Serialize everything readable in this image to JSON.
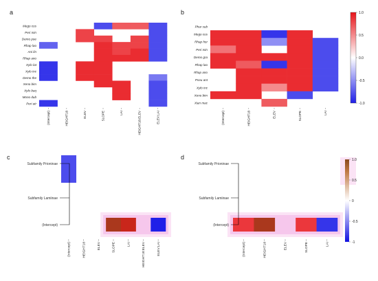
{
  "chart_data": [
    {
      "panel": "a",
      "type": "heatmap",
      "columns": [
        "(Intercept)",
        "HEIGHT18",
        "ELEV",
        "SLOPE",
        "LAI",
        "HEIGHT18:ELEV",
        "ELEV:LAI"
      ],
      "rows": [
        "Mego cos",
        "Peri min",
        "Demo poe",
        "Rhap lao",
        "Ani lin",
        "Rhap ano",
        "Xylo lat",
        "Xylo inc",
        "Demo the",
        "Xeno bim",
        "Xylo buq",
        "Mono dub",
        "Peri atr"
      ],
      "values": [
        [
          0,
          0,
          0,
          -0.8,
          0.7,
          0.7,
          -0.8
        ],
        [
          0,
          0,
          0.8,
          0,
          0,
          0,
          -0.8
        ],
        [
          0,
          0,
          0.8,
          0.8,
          0,
          0.8,
          -0.8
        ],
        [
          -0.7,
          0,
          0,
          0.9,
          0.8,
          0.8,
          -0.8
        ],
        [
          0,
          0,
          0,
          0.9,
          0.8,
          0.9,
          -0.8
        ],
        [
          0,
          0,
          0,
          0.9,
          0.9,
          0.9,
          -0.8
        ],
        [
          -0.9,
          0,
          0.9,
          0.9,
          0,
          0,
          0
        ],
        [
          -0.9,
          0,
          0.9,
          0.9,
          0,
          0,
          0
        ],
        [
          -0.9,
          0,
          0.9,
          0.9,
          0,
          0,
          -0.6
        ],
        [
          0,
          0,
          0,
          0.9,
          0.9,
          0,
          -0.8
        ],
        [
          0,
          0,
          0,
          0,
          0.9,
          0,
          -0.8
        ],
        [
          0,
          0,
          0,
          0,
          0.9,
          0,
          -0.8
        ],
        [
          -0.9,
          0,
          0,
          0,
          0,
          0,
          -0.8
        ]
      ]
    },
    {
      "panel": "b",
      "type": "heatmap",
      "columns": [
        "(Intercept)",
        "HEIGHT18",
        "ELEV",
        "SLOPE",
        "LAI"
      ],
      "rows": [
        "Phar sub",
        "Mego cos",
        "Rhap hor",
        "Peri min",
        "Demo gra",
        "Rhap lao",
        "Rhap ano",
        "Pseu ant",
        "Xylo inc",
        "Xeno bim",
        "Xian mac"
      ],
      "values": [
        [
          0,
          0,
          0,
          0,
          0
        ],
        [
          0.9,
          0.9,
          -0.9,
          0.9,
          0
        ],
        [
          0.9,
          0.9,
          -0.5,
          0.9,
          -0.8
        ],
        [
          0.6,
          0.9,
          0,
          0.9,
          -0.8
        ],
        [
          0.9,
          0.9,
          0.9,
          0.9,
          -0.8
        ],
        [
          0.9,
          0.7,
          -0.9,
          0.9,
          -0.8
        ],
        [
          0,
          0.9,
          0.9,
          0.9,
          -0.8
        ],
        [
          0,
          0.9,
          0.9,
          0.9,
          -0.8
        ],
        [
          0,
          0.9,
          0.5,
          0.9,
          -0.8
        ],
        [
          0.9,
          0.9,
          0,
          -0.8,
          0
        ],
        [
          0,
          0,
          0.7,
          0,
          0
        ]
      ]
    },
    {
      "panel": "c",
      "type": "heatmap",
      "columns": [
        "(Intercept)",
        "HEIGHT18",
        "ELEV",
        "SLOPE",
        "LAI",
        "HEIGHT18:ELEV",
        "ELEV:LAI"
      ],
      "rows": [
        "Subfamily Prioninae",
        "Subfamily Lamiinae",
        "(Intercept)"
      ],
      "values": [
        [
          -0.8,
          0,
          0,
          0,
          0,
          0,
          0
        ],
        [
          0,
          0,
          0,
          0,
          0,
          0,
          0
        ],
        [
          0,
          0,
          0,
          0.95,
          0.9,
          0,
          -1.0
        ]
      ]
    },
    {
      "panel": "d",
      "type": "heatmap",
      "columns": [
        "(Intercept)",
        "HEIGHT18",
        "ELEV",
        "SLOPE",
        "LAI"
      ],
      "rows": [
        "Subfamily Prioninae",
        "Subfamily Lamiinae",
        "(Intercept)"
      ],
      "values": [
        [
          0,
          0,
          0,
          0,
          0
        ],
        [
          0,
          0,
          0,
          0,
          0
        ],
        [
          0.85,
          0.95,
          0,
          0.85,
          -0.9
        ]
      ]
    }
  ],
  "legend_top": {
    "ticks": [
      "1.0",
      "0.5",
      "0.0",
      "-0.5",
      "-1.0"
    ]
  },
  "legend_bottom": {
    "ticks": [
      "1.0",
      "0.5",
      "0",
      "-0.5",
      "-1"
    ]
  },
  "colors": {
    "positive": "#e8141a",
    "negative": "#1f1fe8",
    "zero": "#ffffff",
    "tree_line": "#000000"
  }
}
